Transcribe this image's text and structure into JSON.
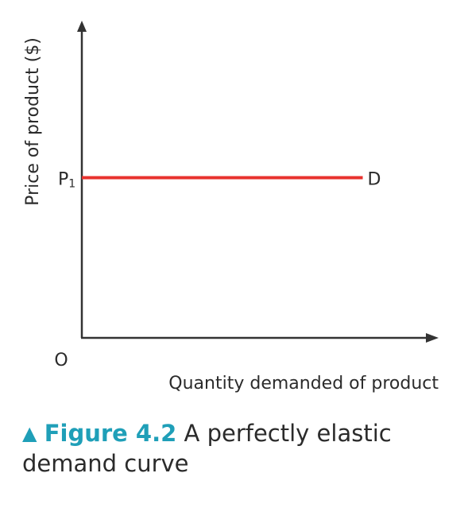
{
  "chart_data": {
    "type": "line",
    "xlabel": "Quantity demanded of product",
    "ylabel": "Price of product ($)",
    "origin_label": "O",
    "price_label": "P",
    "price_subscript": "1",
    "series": [
      {
        "name": "D",
        "x": [
          0,
          1
        ],
        "y": [
          1,
          1
        ]
      }
    ],
    "xlim": [
      0,
      1.27
    ],
    "ylim": [
      0,
      1.96
    ],
    "grid": false,
    "line_color": "#e8322e",
    "axis_color": "#333333"
  },
  "caption": {
    "marker": "▲",
    "figure_label": "Figure 4.2",
    "text": "A perfectly elastic demand curve"
  }
}
